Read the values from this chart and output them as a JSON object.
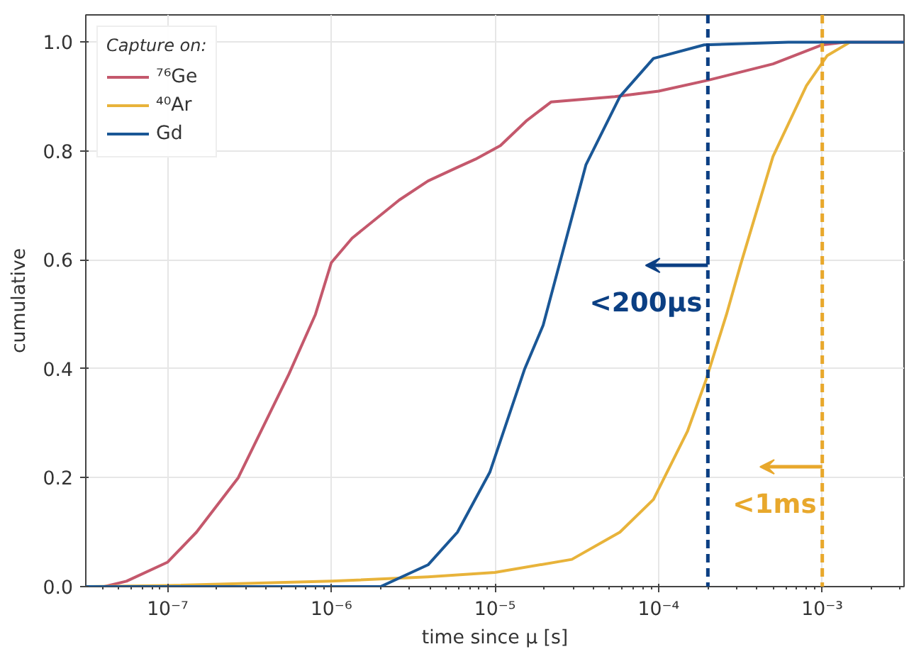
{
  "chart_data": {
    "type": "line",
    "xlabel": "time since μ [s]",
    "ylabel": "cumulative",
    "legend_title": "Capture on:",
    "log": "x",
    "grid": true,
    "legend": "top left",
    "xlim": [
      3.16e-08,
      0.00316
    ],
    "ylim": [
      0,
      1.05
    ],
    "xticks": [
      {
        "value": 1e-07,
        "label": "10⁻⁷"
      },
      {
        "value": 1e-06,
        "label": "10⁻⁶"
      },
      {
        "value": 1e-05,
        "label": "10⁻⁵"
      },
      {
        "value": 0.0001,
        "label": "10⁻⁴"
      },
      {
        "value": 0.001,
        "label": "10⁻³"
      }
    ],
    "yticks": [
      {
        "value": 0,
        "label": "0.0"
      },
      {
        "value": 0.2,
        "label": "0.2"
      },
      {
        "value": 0.4,
        "label": "0.4"
      },
      {
        "value": 0.6,
        "label": "0.6"
      },
      {
        "value": 0.8,
        "label": "0.8"
      },
      {
        "value": 1.0,
        "label": "1.0"
      }
    ],
    "series": [
      {
        "name": "⁷⁶Ge",
        "color": "#c4586c",
        "x": [
          3.16e-08,
          4.1e-08,
          5.6e-08,
          1e-07,
          1.5e-07,
          2.7e-07,
          5.5e-07,
          8e-07,
          1e-06,
          1.34e-06,
          2.6e-06,
          3.9e-06,
          5.9e-06,
          7.6e-06,
          1.08e-05,
          1.55e-05,
          2.2e-05,
          5.4e-05,
          0.0001,
          0.0002,
          0.0005,
          0.001,
          0.0014,
          0.00316
        ],
        "values": [
          0,
          0,
          0.01,
          0.045,
          0.1,
          0.2,
          0.39,
          0.5,
          0.595,
          0.64,
          0.71,
          0.745,
          0.77,
          0.785,
          0.81,
          0.855,
          0.89,
          0.9,
          0.91,
          0.93,
          0.96,
          0.995,
          1.0,
          1.0
        ]
      },
      {
        "name": "⁴⁰Ar",
        "color": "#e8b33a",
        "x": [
          3.16e-08,
          1e-07,
          1e-06,
          3.9e-06,
          1e-05,
          2.95e-05,
          5.8e-05,
          9.3e-05,
          0.00015,
          0.000195,
          0.00026,
          0.000316,
          0.0005,
          0.0008,
          0.00107,
          0.00148
        ],
        "values": [
          0,
          0.002,
          0.01,
          0.018,
          0.026,
          0.05,
          0.1,
          0.16,
          0.285,
          0.38,
          0.5,
          0.59,
          0.79,
          0.92,
          0.975,
          1.0
        ]
      },
      {
        "name": "Gd",
        "color": "#1a5796",
        "x": [
          3.16e-08,
          1e-06,
          2e-06,
          3.9e-06,
          5.9e-06,
          9.3e-06,
          1.52e-05,
          1.97e-05,
          3.6e-05,
          5.8e-05,
          9.3e-05,
          0.00019,
          0.00062,
          0.00316
        ],
        "values": [
          0,
          0,
          0,
          0.04,
          0.1,
          0.21,
          0.4,
          0.48,
          0.775,
          0.9,
          0.97,
          0.995,
          1.0,
          1.0
        ]
      }
    ],
    "ref_lines": [
      {
        "axis": "x",
        "value": 0.0002,
        "label": "<200μs",
        "color": "#0b3f83",
        "line_style": "dashed"
      },
      {
        "axis": "x",
        "value": 0.001,
        "label": "<1ms",
        "color": "#e8a82c",
        "line_style": "dashed"
      }
    ]
  }
}
